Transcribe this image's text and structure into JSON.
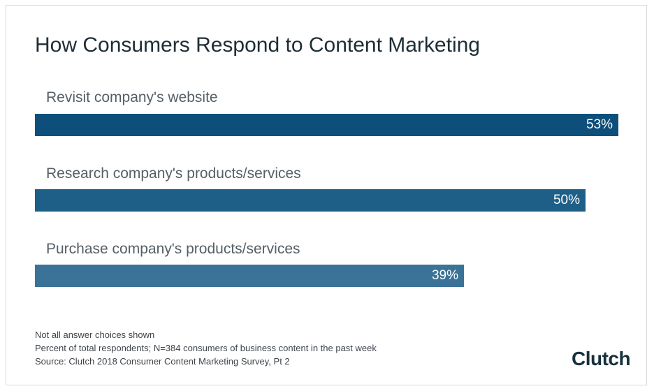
{
  "chart_data": {
    "type": "bar",
    "orientation": "horizontal",
    "title": "How Consumers Respond to Content Marketing",
    "categories": [
      "Revisit company's website",
      "Research company's products/services",
      "Purchase company's products/services"
    ],
    "values": [
      53,
      50,
      39
    ],
    "value_labels": [
      "53%",
      "50%",
      "39%"
    ],
    "colors": [
      "#0d4f7a",
      "#1e5f88",
      "#3a7397"
    ],
    "xlim": [
      0,
      53
    ],
    "unit": "%"
  },
  "footnotes": [
    "Not all answer choices shown",
    "Percent of total respondents; N=384 consumers of business content in the past week",
    "Source: Clutch 2018 Consumer Content Marketing Survey, Pt 2"
  ],
  "logo": {
    "text": "Clutch"
  }
}
